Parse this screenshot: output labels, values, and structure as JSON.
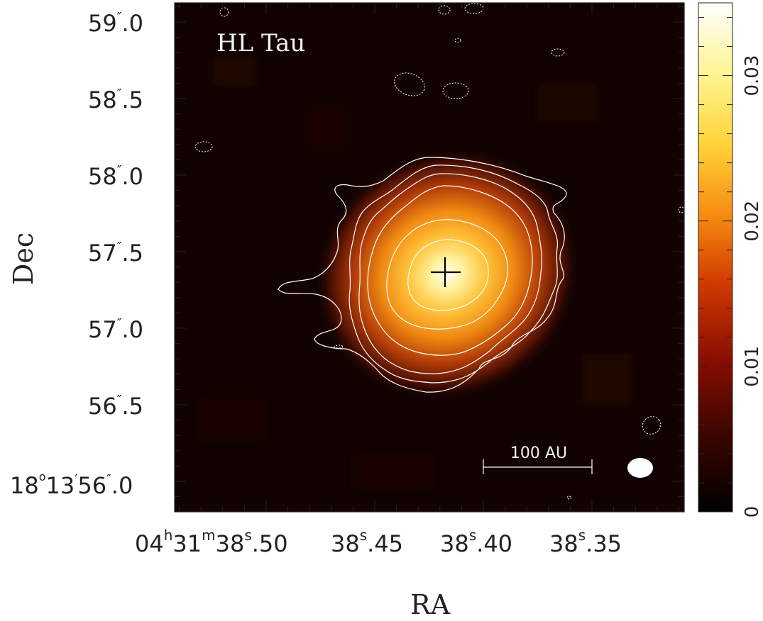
{
  "image": {
    "object_label": "HL Tau",
    "x_axis_title": "RA",
    "y_axis_title": "Dec",
    "scale_bar_label": "100 AU",
    "source_marker": "cross",
    "beam_shape": "filled ellipse",
    "colormap": "black-red-orange-yellow-white",
    "ra_ticks": [
      {
        "base": "04",
        "h": "h",
        "mid": "31",
        "m": "m",
        "main": "38",
        "s": "s",
        "frac": ".50"
      },
      {
        "base": "38",
        "s": "s",
        "frac": ".45"
      },
      {
        "base": "38",
        "s": "s",
        "frac": ".40"
      },
      {
        "base": "38",
        "s": "s",
        "frac": ".35"
      }
    ],
    "dec_ticks": [
      {
        "main": "59",
        "frac": ".0"
      },
      {
        "main": "58",
        "frac": ".5"
      },
      {
        "main": "58",
        "frac": ".0"
      },
      {
        "main": "57",
        "frac": ".5"
      },
      {
        "main": "57",
        "frac": ".0"
      },
      {
        "main": "56",
        "frac": ".5"
      },
      {
        "deg": "18",
        "amin": "13",
        "main": "56",
        "frac": ".0"
      }
    ],
    "colorbar": {
      "range": [
        0,
        0.035
      ],
      "tick_labels": [
        "0",
        "0.01",
        "0.02",
        "0.03"
      ],
      "tick_values": [
        0,
        0.01,
        0.02,
        0.03
      ]
    },
    "colors": {
      "contour": "#ffffff",
      "marker": "#000000",
      "frame": "#222222"
    }
  }
}
